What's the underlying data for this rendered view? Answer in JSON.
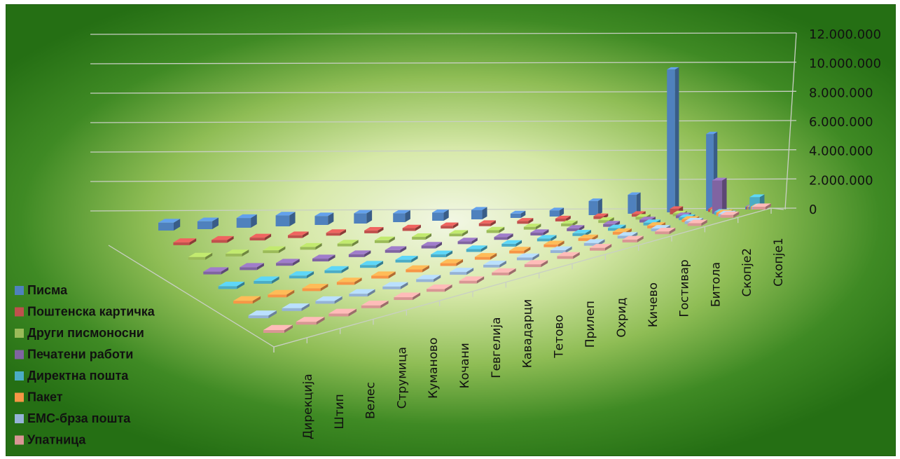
{
  "chart_data": {
    "type": "bar",
    "title": "",
    "categories": [
      "Дирекција",
      "Штип",
      "Велес",
      "Струмица",
      "Куманово",
      "Кочани",
      "Гевгелија",
      "Кавадарци",
      "Тетово",
      "Прилеп",
      "Охрид",
      "Кичево",
      "Гостивар",
      "Битола",
      "Скопје2",
      "Скопје1"
    ],
    "ylim": [
      0,
      12000000
    ],
    "yticks": [
      0,
      2000000,
      4000000,
      6000000,
      8000000,
      10000000,
      12000000
    ],
    "ytick_labels": [
      "0",
      "2.000.000",
      "4.000.000",
      "6.000.000",
      "8.000.000",
      "10.000.000",
      "12.000.000"
    ],
    "grid": true,
    "legend_position": "left-bottom",
    "colors": [
      "#4f81bd",
      "#c0504d",
      "#9bbb59",
      "#8064a2",
      "#4bacc6",
      "#f79646",
      "#95b3d7",
      "#d99694"
    ],
    "series": [
      {
        "name": "Писма",
        "values": [
          600000,
          600000,
          750000,
          850000,
          700000,
          800000,
          700000,
          650000,
          750000,
          350000,
          500000,
          1150000,
          1550000,
          11800000,
          6400000,
          0
        ]
      },
      {
        "name": "Поштенска картичка",
        "values": [
          20000,
          20000,
          20000,
          20000,
          20000,
          20000,
          20000,
          20000,
          20000,
          20000,
          20000,
          20000,
          20000,
          450000,
          150000,
          20000
        ]
      },
      {
        "name": "Други писмоносни",
        "values": [
          20000,
          20000,
          20000,
          20000,
          20000,
          20000,
          20000,
          20000,
          20000,
          20000,
          20000,
          20000,
          20000,
          20000,
          50000,
          20000
        ]
      },
      {
        "name": "Печатени работи",
        "values": [
          20000,
          20000,
          20000,
          20000,
          20000,
          20000,
          20000,
          20000,
          20000,
          20000,
          20000,
          20000,
          20000,
          20000,
          2700000,
          20000
        ]
      },
      {
        "name": "Директна пошта",
        "values": [
          20000,
          20000,
          20000,
          20000,
          20000,
          20000,
          20000,
          20000,
          20000,
          20000,
          20000,
          20000,
          20000,
          20000,
          20000,
          1000000
        ]
      },
      {
        "name": "Пакет",
        "values": [
          20000,
          20000,
          20000,
          20000,
          20000,
          20000,
          20000,
          20000,
          20000,
          20000,
          20000,
          20000,
          20000,
          20000,
          250000,
          20000
        ]
      },
      {
        "name": "ЕМС-брза пошта",
        "values": [
          150000,
          20000,
          20000,
          20000,
          20000,
          20000,
          20000,
          20000,
          20000,
          20000,
          20000,
          20000,
          20000,
          20000,
          20000,
          20000
        ]
      },
      {
        "name": "Упатница",
        "values": [
          20000,
          20000,
          20000,
          20000,
          20000,
          20000,
          20000,
          20000,
          20000,
          20000,
          20000,
          20000,
          20000,
          20000,
          20000,
          20000
        ]
      }
    ]
  }
}
